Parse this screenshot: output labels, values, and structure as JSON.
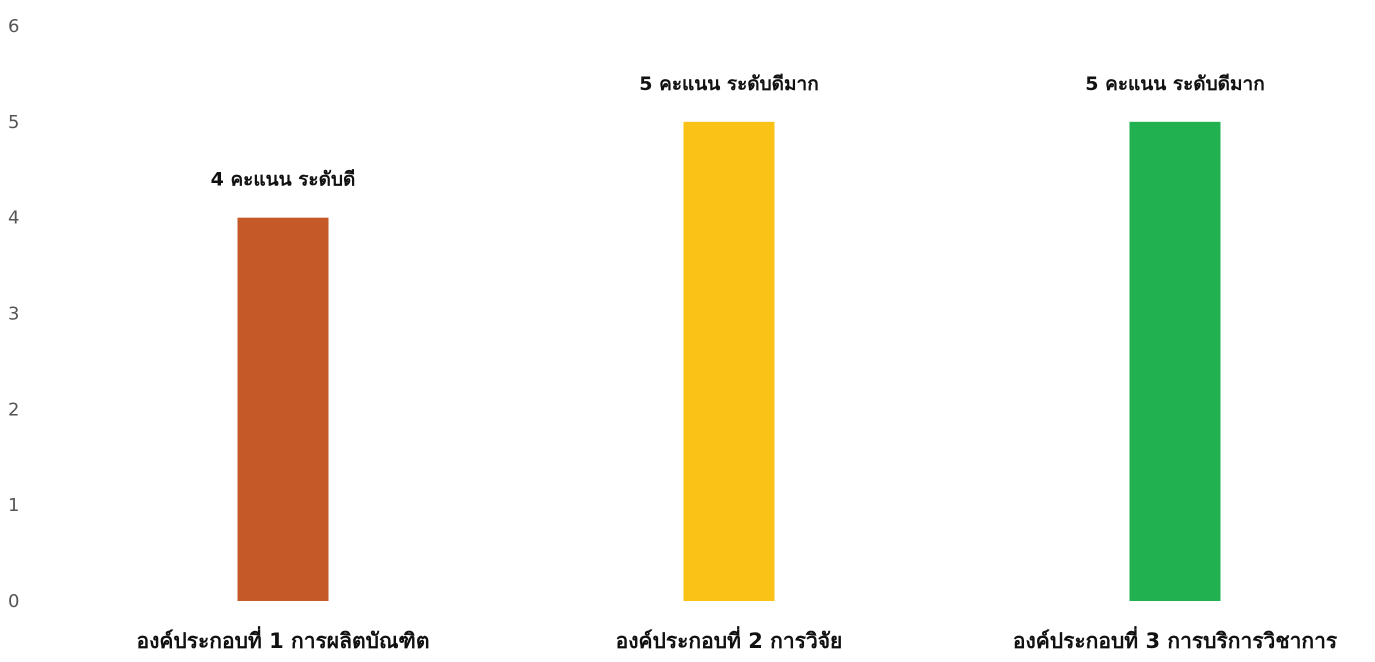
{
  "chart_data": {
    "type": "bar",
    "title": "",
    "xlabel": "",
    "ylabel": "",
    "categories": [
      "องค์ประกอบที่ 1 การผลิตบัณฑิต",
      "องค์ประกอบที่ 2 การวิจัย",
      "องค์ประกอบที่ 3 การบริการวิชาการ"
    ],
    "values": [
      4,
      5,
      5
    ],
    "data_labels": [
      "4 คะแนน ระดับดี",
      "5 คะแนน ระดับดีมาก",
      "5 คะแนน ระดับดีมาก"
    ],
    "colors": [
      "#C55A28",
      "#FAC116",
      "#21B150"
    ],
    "ylim": [
      0,
      6
    ],
    "y_ticks": [
      0,
      1,
      2,
      3,
      4,
      5,
      6
    ],
    "grid": false,
    "legend": "none"
  }
}
